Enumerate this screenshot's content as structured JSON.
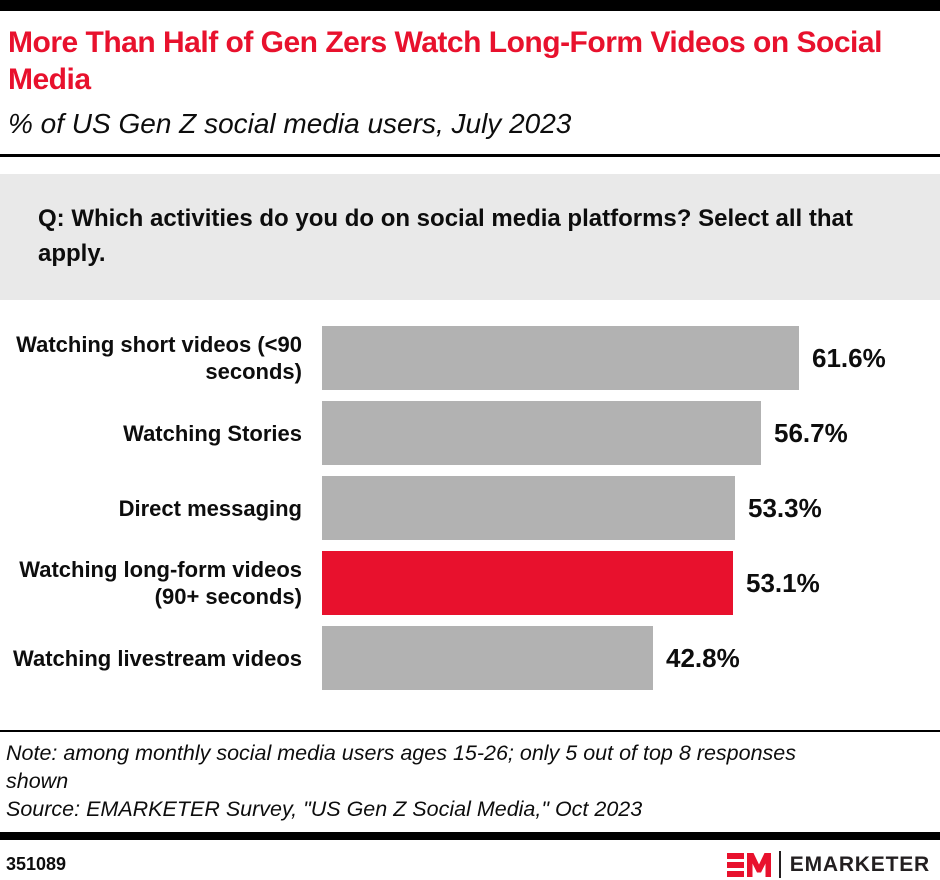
{
  "header": {
    "title": "More Than Half of Gen Zers Watch Long-Form Videos on Social Media",
    "subtitle": "% of US Gen Z social media users, July 2023"
  },
  "question": "Q: Which activities do you do on social media platforms? Select all that apply.",
  "chart_data": {
    "type": "bar",
    "orientation": "horizontal",
    "title": "More Than Half of Gen Zers Watch Long-Form Videos on Social Media",
    "subtitle": "% of US Gen Z social media users, July 2023",
    "categories": [
      "Watching short videos (<90 seconds)",
      "Watching Stories",
      "Direct messaging",
      "Watching long-form videos (90+ seconds)",
      "Watching livestream videos"
    ],
    "values": [
      61.6,
      56.7,
      53.3,
      53.1,
      42.8
    ],
    "value_labels": [
      "61.6%",
      "56.7%",
      "53.3%",
      "53.1%",
      "42.8%"
    ],
    "highlight_index": 3,
    "xlim": [
      0,
      63.6
    ],
    "grid": false,
    "legend": "none"
  },
  "colors": {
    "accent_red": "#E8112D",
    "bar_gray": "#B2B2B2",
    "question_bg": "#E9E9E9",
    "bar_black": "#000000",
    "logo_dark": "#231F20"
  },
  "notes": {
    "note": "Note: among monthly social media users ages 15-26; only 5 out of top 8 responses shown",
    "source": "Source: EMARKETER Survey, \"US Gen Z Social Media,\" Oct 2023"
  },
  "footer": {
    "chart_id": "351089",
    "logo_monogram": "EM",
    "logo_text": "EMARKETER"
  }
}
